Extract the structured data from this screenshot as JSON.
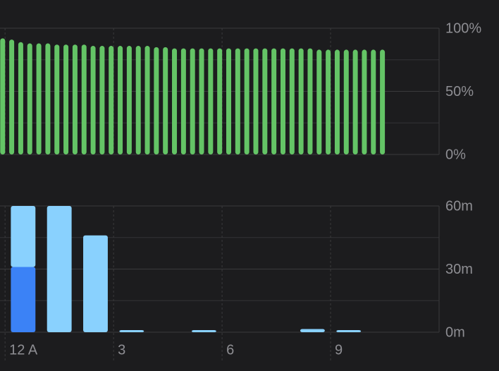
{
  "chart_data": [
    {
      "type": "bar",
      "x": [
        -0.25,
        0,
        0.25,
        0.5,
        0.75,
        1,
        1.25,
        1.5,
        1.75,
        2,
        2.25,
        2.5,
        2.75,
        3,
        3.25,
        3.5,
        3.75,
        4,
        4.25,
        4.5,
        4.75,
        5,
        5.25,
        5.5,
        5.75,
        6,
        6.25,
        6.5,
        6.75,
        7,
        7.25,
        7.5,
        7.75,
        8,
        8.25,
        8.5,
        8.75,
        9,
        9.25,
        9.5,
        9.75,
        10,
        10.25
      ],
      "values": [
        92,
        91,
        89,
        88,
        88,
        88,
        87,
        87,
        87,
        87,
        86,
        86,
        86,
        86,
        86,
        86,
        86,
        85,
        85,
        84,
        84,
        84,
        84,
        84,
        84,
        84,
        84,
        84,
        84,
        84,
        84,
        84,
        84,
        84,
        84,
        83,
        83,
        83,
        83,
        83,
        83,
        83,
        83
      ],
      "color": "#64c466",
      "xlim": [
        -0.14,
        12
      ],
      "xticks": [
        0,
        3,
        6,
        9
      ],
      "ylim": [
        0,
        100
      ],
      "yticks": [
        {
          "value": 0,
          "label": "0%"
        },
        {
          "value": 50,
          "label": "50%"
        },
        {
          "value": 100,
          "label": "100%"
        }
      ],
      "yminor": [
        25,
        75
      ],
      "grid": true
    },
    {
      "type": "stacked-bar",
      "x": [
        0,
        1,
        2,
        3,
        4,
        5,
        6,
        7,
        8,
        9,
        10,
        11
      ],
      "series": [
        {
          "color": "#3b82f6",
          "values": [
            31,
            0,
            0,
            0,
            0,
            0,
            0,
            0,
            0,
            0,
            0,
            0
          ]
        },
        {
          "color": "#89d1fe",
          "values": [
            29,
            60,
            46,
            1,
            0,
            1,
            0,
            0,
            1.5,
            1,
            0,
            0
          ]
        }
      ],
      "xlim": [
        -0.14,
        12
      ],
      "xticks": [
        {
          "value": 0,
          "label": "12 A"
        },
        {
          "value": 3,
          "label": "3"
        },
        {
          "value": 6,
          "label": "6"
        },
        {
          "value": 9,
          "label": "9"
        }
      ],
      "ylim": [
        0,
        60
      ],
      "yticks": [
        {
          "value": 0,
          "label": "0m"
        },
        {
          "value": 30,
          "label": "30m"
        },
        {
          "value": 60,
          "label": "60m"
        }
      ],
      "yminor": [
        15,
        45
      ],
      "grid": true
    }
  ]
}
